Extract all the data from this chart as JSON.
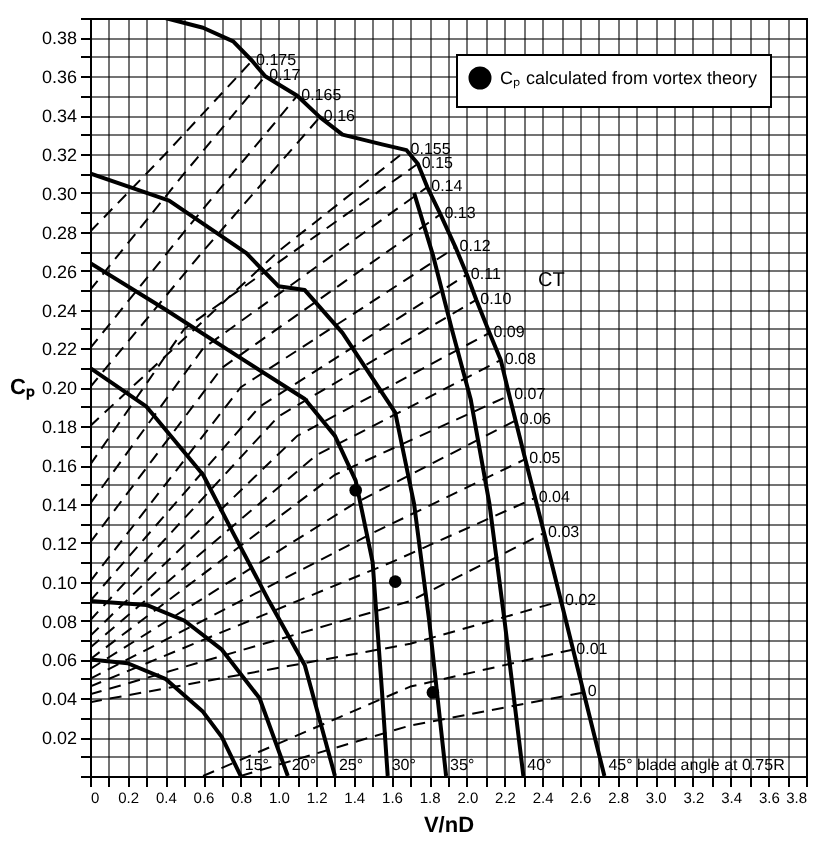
{
  "chart_data": {
    "type": "line",
    "xlabel": "V/nD",
    "ylabel": "Cₚ",
    "xlim": [
      0,
      3.8
    ],
    "ylim": [
      0,
      0.39
    ],
    "xticks": [
      0,
      {
        "value": 0.1,
        "label": null
      },
      0.2,
      {
        "value": 0.3,
        "label": null
      },
      0.4,
      {
        "value": 0.5,
        "label": null
      },
      0.6,
      {
        "value": 0.7,
        "label": null
      },
      0.8,
      {
        "value": 0.9,
        "label": null
      },
      {
        "value": 1,
        "label": "1.0"
      },
      {
        "value": 1.1,
        "label": null
      },
      1.2,
      {
        "value": 1.3,
        "label": null
      },
      1.4,
      {
        "value": 1.5,
        "label": null
      },
      1.6,
      {
        "value": 1.7,
        "label": null
      },
      1.8,
      {
        "value": 1.9,
        "label": null
      },
      {
        "value": 2,
        "label": "2.0"
      },
      {
        "value": 2.1,
        "label": null
      },
      2.2,
      {
        "value": 2.3,
        "label": null
      },
      2.4,
      {
        "value": 2.5,
        "label": null
      },
      2.6,
      {
        "value": 2.7,
        "label": null
      },
      2.8,
      {
        "value": 2.9,
        "label": null
      },
      {
        "value": 3,
        "label": "3.0"
      },
      {
        "value": 3.1,
        "label": null
      },
      3.2,
      {
        "value": 3.3,
        "label": null
      },
      3.4,
      {
        "value": 3.5,
        "label": null
      },
      3.6,
      {
        "value": 3.7,
        "label": null
      },
      3.8
    ],
    "yticks": [
      {
        "value": 0,
        "label": null
      },
      {
        "value": 0.01,
        "label": null
      },
      0.02,
      {
        "value": 0.03,
        "label": null
      },
      0.04,
      {
        "value": 0.05,
        "label": null
      },
      0.06,
      {
        "value": 0.07,
        "label": null
      },
      0.08,
      {
        "value": 0.09,
        "label": null
      },
      {
        "value": 0.1,
        "label": "0.10"
      },
      {
        "value": 0.11,
        "label": null
      },
      0.12,
      {
        "value": 0.13,
        "label": null
      },
      0.14,
      {
        "value": 0.15,
        "label": null
      },
      0.16,
      {
        "value": 0.17,
        "label": null
      },
      0.18,
      {
        "value": 0.19,
        "label": null
      },
      {
        "value": 0.2,
        "label": "0.20"
      },
      {
        "value": 0.21,
        "label": null
      },
      0.22,
      {
        "value": 0.23,
        "label": null
      },
      0.24,
      {
        "value": 0.25,
        "label": null
      },
      0.26,
      {
        "value": 0.27,
        "label": null
      },
      0.28,
      {
        "value": 0.29,
        "label": null
      },
      {
        "value": 0.3,
        "label": "0.30"
      },
      {
        "value": 0.31,
        "label": null
      },
      0.32,
      {
        "value": 0.33,
        "label": null
      },
      0.34,
      {
        "value": 0.35,
        "label": null
      },
      0.36,
      {
        "value": 0.37,
        "label": null
      },
      0.38,
      {
        "value": 0.39,
        "label": null
      }
    ],
    "grid": true,
    "legend": "top right",
    "annotations": [
      "CT"
    ],
    "series": [
      {
        "name": "15°",
        "line_style": "solid",
        "color": "#000000",
        "x": [
          0,
          0.2,
          0.4,
          0.6,
          0.7,
          0.8
        ],
        "values": [
          0.06,
          0.058,
          0.05,
          0.033,
          0.02,
          0
        ]
      },
      {
        "name": "20°",
        "line_style": "solid",
        "color": "#000000",
        "x": [
          0,
          0.3,
          0.5,
          0.7,
          0.9,
          1.05
        ],
        "values": [
          0.09,
          0.088,
          0.08,
          0.065,
          0.04,
          0
        ]
      },
      {
        "name": "25°",
        "line_style": "solid",
        "color": "#000000",
        "x": [
          0,
          0.3,
          0.6,
          0.76,
          0.95,
          1.14,
          1.3
        ],
        "values": [
          0.21,
          0.19,
          0.155,
          0.125,
          0.09,
          0.057,
          0
        ]
      },
      {
        "name": "30°",
        "line_style": "solid",
        "color": "#000000",
        "x": [
          0,
          0.4,
          0.8,
          1.14,
          1.3,
          1.41,
          1.5,
          1.55,
          1.58
        ],
        "values": [
          0.264,
          0.24,
          0.215,
          0.194,
          0.175,
          0.152,
          0.11,
          0.043,
          0
        ]
      },
      {
        "name": "35°",
        "line_style": "solid",
        "color": "#000000",
        "x": [
          0,
          0.42,
          0.83,
          1.0,
          1.14,
          1.34,
          1.62,
          1.72,
          1.8,
          1.89
        ],
        "values": [
          0.31,
          0.296,
          0.269,
          0.252,
          0.25,
          0.228,
          0.187,
          0.14,
          0.08,
          0
        ]
      },
      {
        "name": "40°",
        "line_style": "solid",
        "color": "#000000",
        "x": [
          1.72,
          1.82,
          1.92,
          2.02,
          2.12,
          2.2,
          2.3
        ],
        "values": [
          0.3,
          0.268,
          0.23,
          0.194,
          0.14,
          0.08,
          0
        ]
      },
      {
        "name": "45° blade angle at 0.75R",
        "line_style": "solid",
        "color": "#000000",
        "x": [
          0.4,
          0.6,
          0.76,
          0.86,
          0.93,
          1.1,
          1.22,
          1.34,
          1.55,
          1.68,
          1.74,
          1.79,
          1.86,
          1.94,
          2.0,
          2.05,
          2.12,
          2.18,
          2.23,
          2.31,
          2.41,
          2.5,
          2.62,
          2.73
        ],
        "values": [
          0.39,
          0.385,
          0.378,
          0.368,
          0.36,
          0.35,
          0.339,
          0.33,
          0.325,
          0.322,
          0.315,
          0.303,
          0.289,
          0.272,
          0.258,
          0.245,
          0.228,
          0.214,
          0.194,
          0.163,
          0.125,
          0.09,
          0.043,
          0
        ]
      },
      {
        "name": "0",
        "line_style": "dashed",
        "color": "#000000",
        "x": [
          0.8,
          1.7,
          2.62
        ],
        "values": [
          0,
          0.026,
          0.043
        ]
      },
      {
        "name": "0.01",
        "line_style": "dashed",
        "color": "#000000",
        "x": [
          0.6,
          1.7,
          2.56
        ],
        "values": [
          0,
          0.046,
          0.065
        ]
      },
      {
        "name": "0.02",
        "line_style": "dashed",
        "color": "#000000",
        "x": [
          0,
          1.7,
          2.5
        ],
        "values": [
          0.038,
          0.068,
          0.09
        ]
      },
      {
        "name": "0.03",
        "line_style": "dashed",
        "color": "#000000",
        "x": [
          0,
          1.7,
          2.41
        ],
        "values": [
          0.042,
          0.09,
          0.125
        ]
      },
      {
        "name": "0.04",
        "line_style": "dashed",
        "color": "#000000",
        "x": [
          0,
          1.6,
          2.36
        ],
        "values": [
          0.046,
          0.11,
          0.143
        ]
      },
      {
        "name": "0.05",
        "line_style": "dashed",
        "color": "#000000",
        "x": [
          0,
          1.5,
          2.31
        ],
        "values": [
          0.05,
          0.125,
          0.163
        ]
      },
      {
        "name": "0.06",
        "line_style": "dashed",
        "color": "#000000",
        "x": [
          0,
          1.4,
          2.26
        ],
        "values": [
          0.055,
          0.14,
          0.183
        ]
      },
      {
        "name": "0.07",
        "line_style": "dashed",
        "color": "#000000",
        "x": [
          0,
          1.3,
          2.23
        ],
        "values": [
          0.06,
          0.155,
          0.196
        ]
      },
      {
        "name": "0.08",
        "line_style": "dashed",
        "color": "#000000",
        "x": [
          0,
          1.2,
          2.18
        ],
        "values": [
          0.066,
          0.165,
          0.214
        ]
      },
      {
        "name": "0.09",
        "line_style": "dashed",
        "color": "#000000",
        "x": [
          0,
          1.1,
          2.12
        ],
        "values": [
          0.072,
          0.175,
          0.228
        ]
      },
      {
        "name": "0.10",
        "line_style": "dashed",
        "color": "#000000",
        "x": [
          0,
          1.0,
          2.05
        ],
        "values": [
          0.08,
          0.185,
          0.245
        ]
      },
      {
        "name": "0.11",
        "line_style": "dashed",
        "color": "#000000",
        "x": [
          0,
          0.9,
          2.0
        ],
        "values": [
          0.09,
          0.19,
          0.258
        ]
      },
      {
        "name": "0.12",
        "line_style": "dashed",
        "color": "#000000",
        "x": [
          0,
          0.8,
          1.94
        ],
        "values": [
          0.1,
          0.2,
          0.272
        ]
      },
      {
        "name": "0.13",
        "line_style": "dashed",
        "color": "#000000",
        "x": [
          0,
          0.7,
          1.86
        ],
        "values": [
          0.12,
          0.21,
          0.289
        ]
      },
      {
        "name": "0.14",
        "line_style": "dashed",
        "color": "#000000",
        "x": [
          0,
          0.6,
          1.79
        ],
        "values": [
          0.14,
          0.22,
          0.303
        ]
      },
      {
        "name": "0.15",
        "line_style": "dashed",
        "color": "#000000",
        "x": [
          0,
          0.5,
          1.74
        ],
        "values": [
          0.16,
          0.23,
          0.315
        ]
      },
      {
        "name": "0.155",
        "line_style": "dashed",
        "color": "#000000",
        "x": [
          0,
          1.0,
          1.68
        ],
        "values": [
          0.18,
          0.27,
          0.322
        ]
      },
      {
        "name": "0.16",
        "line_style": "dashed",
        "color": "#000000",
        "x": [
          0,
          0.6,
          1.22
        ],
        "values": [
          0.2,
          0.27,
          0.339
        ]
      },
      {
        "name": "0.165",
        "line_style": "dashed",
        "color": "#000000",
        "x": [
          0,
          0.5,
          1.1
        ],
        "values": [
          0.22,
          0.28,
          0.35
        ]
      },
      {
        "name": "0.17",
        "line_style": "dashed",
        "color": "#000000",
        "x": [
          0,
          0.5,
          0.93
        ],
        "values": [
          0.25,
          0.31,
          0.36
        ]
      },
      {
        "name": "0.175",
        "line_style": "dashed",
        "color": "#000000",
        "x": [
          0,
          0.4,
          0.86
        ],
        "values": [
          0.28,
          0.32,
          0.368
        ]
      },
      {
        "name": "Cₚ calculated from vortex theory",
        "type": "scatter",
        "marker": "circle",
        "color": "#000000",
        "x": [
          1.41,
          1.62,
          1.82
        ],
        "values": [
          0.147,
          0.1,
          0.043
        ]
      }
    ]
  }
}
